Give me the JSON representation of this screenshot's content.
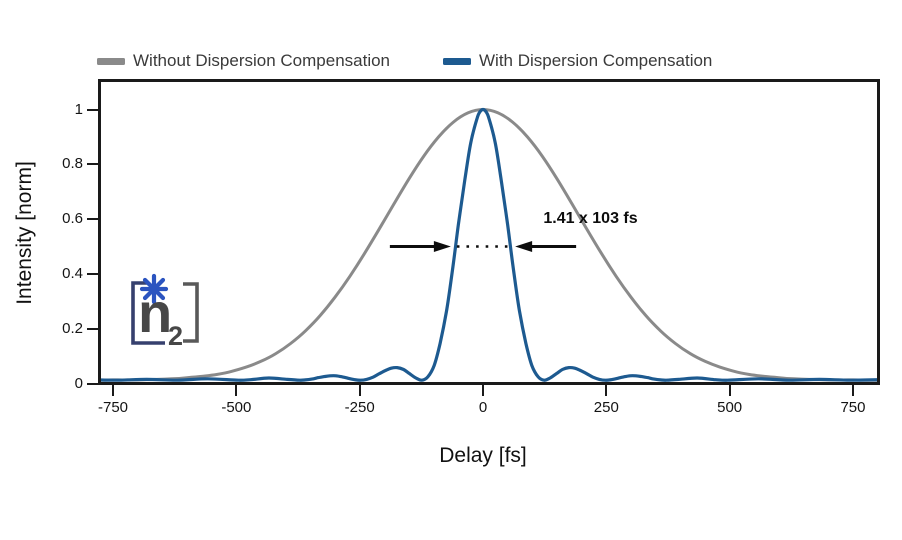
{
  "legend": {
    "items": [
      {
        "label": "Without Dispersion Compensation",
        "color": "#8a8a8a"
      },
      {
        "label": "With Dispersion Compensation",
        "color": "#1d5a90"
      }
    ]
  },
  "axes": {
    "x": {
      "label": "Delay [fs]",
      "ticks": [
        -750,
        -500,
        -250,
        0,
        250,
        500,
        750
      ],
      "tick_labels": [
        "-750",
        "-500",
        "-250",
        "0",
        "250",
        "500",
        "750"
      ],
      "range": [
        -810,
        810
      ]
    },
    "y": {
      "label": "Intensity [norm]",
      "ticks": [
        0,
        0.2,
        0.4,
        0.6,
        0.8,
        1
      ],
      "tick_labels": [
        "0",
        "0.2",
        "0.4",
        "0.6",
        "0.8",
        "1"
      ],
      "range": [
        0,
        1.1
      ]
    }
  },
  "annotation": {
    "text": "1.41 x 103 fs",
    "level": 0.5,
    "fwhm_left_fs": -55,
    "fwhm_right_fs": 55,
    "arrow_color": "#0d0d0d"
  },
  "logo": {
    "text_main": "n",
    "text_sub": "2",
    "asterisk_color": "#2b54c0",
    "left_bracket_color": "#36406e",
    "right_bracket_color": "#595959",
    "letter_color": "#474747"
  },
  "chart_data": {
    "type": "line",
    "title": "",
    "xlabel": "Delay [fs]",
    "ylabel": "Intensity [norm]",
    "xlim": [
      -810,
      810
    ],
    "ylim": [
      0,
      1.1
    ],
    "grid": false,
    "legend_position": "top",
    "series": [
      {
        "name": "Without Dispersion Compensation",
        "color": "#8a8a8a",
        "shape": "gaussian, FWHM ~460 fs, peak 1.0 at 0 fs",
        "x": [
          -810,
          -780,
          -750,
          -720,
          -690,
          -660,
          -630,
          -600,
          -570,
          -540,
          -510,
          -480,
          -450,
          -420,
          -390,
          -360,
          -330,
          -300,
          -270,
          -240,
          -210,
          -180,
          -150,
          -120,
          -90,
          -60,
          -30,
          0,
          30,
          60,
          90,
          120,
          150,
          180,
          210,
          240,
          270,
          300,
          330,
          360,
          390,
          420,
          450,
          480,
          510,
          540,
          570,
          600,
          630,
          660,
          690,
          720,
          750,
          780,
          810
        ],
        "y": [
          0.012,
          0.012,
          0.013,
          0.013,
          0.014,
          0.015,
          0.017,
          0.021,
          0.026,
          0.033,
          0.044,
          0.06,
          0.081,
          0.109,
          0.146,
          0.192,
          0.248,
          0.315,
          0.391,
          0.475,
          0.565,
          0.657,
          0.747,
          0.83,
          0.9,
          0.954,
          0.988,
          1.0,
          0.988,
          0.954,
          0.9,
          0.83,
          0.747,
          0.657,
          0.565,
          0.475,
          0.391,
          0.315,
          0.248,
          0.192,
          0.146,
          0.109,
          0.081,
          0.06,
          0.044,
          0.033,
          0.026,
          0.021,
          0.017,
          0.015,
          0.014,
          0.013,
          0.013,
          0.012,
          0.012
        ]
      },
      {
        "name": "With Dispersion Compensation",
        "color": "#1d5a90",
        "shape": "sinc^2-like, FWHM ~110 fs, side lobes at ~±175 and ~±305 fs",
        "x": [
          -810,
          -806,
          -744,
          -682,
          -620,
          -558,
          -496,
          -471,
          -434,
          -397,
          -372,
          -360,
          -347,
          -335,
          -322,
          -310,
          -298,
          -285,
          -273,
          -260,
          -248,
          -236,
          -223,
          -211,
          -198,
          -186,
          -174,
          -161,
          -149,
          -136,
          -124,
          -112,
          -99,
          -87,
          -74,
          -62,
          -50,
          -37,
          -25,
          -12,
          -6,
          0,
          6,
          12,
          25,
          37,
          50,
          62,
          74,
          87,
          99,
          112,
          124,
          136,
          149,
          161,
          174,
          186,
          198,
          211,
          223,
          236,
          248,
          260,
          273,
          285,
          298,
          310,
          322,
          335,
          347,
          360,
          372,
          397,
          434,
          471,
          496,
          558,
          620,
          682,
          744,
          806,
          810
        ],
        "y": [
          0.013,
          0.014,
          0.012,
          0.015,
          0.012,
          0.017,
          0.012,
          0.014,
          0.02,
          0.015,
          0.012,
          0.013,
          0.016,
          0.021,
          0.025,
          0.028,
          0.028,
          0.024,
          0.019,
          0.014,
          0.012,
          0.015,
          0.023,
          0.035,
          0.047,
          0.056,
          0.058,
          0.051,
          0.036,
          0.02,
          0.012,
          0.024,
          0.066,
          0.146,
          0.264,
          0.412,
          0.578,
          0.74,
          0.877,
          0.968,
          0.992,
          1.0,
          0.992,
          0.968,
          0.877,
          0.74,
          0.578,
          0.412,
          0.264,
          0.146,
          0.066,
          0.024,
          0.012,
          0.02,
          0.036,
          0.051,
          0.058,
          0.056,
          0.047,
          0.035,
          0.023,
          0.015,
          0.012,
          0.014,
          0.019,
          0.024,
          0.028,
          0.028,
          0.025,
          0.021,
          0.016,
          0.013,
          0.012,
          0.015,
          0.02,
          0.014,
          0.012,
          0.017,
          0.012,
          0.015,
          0.012,
          0.014,
          0.013
        ]
      }
    ]
  }
}
